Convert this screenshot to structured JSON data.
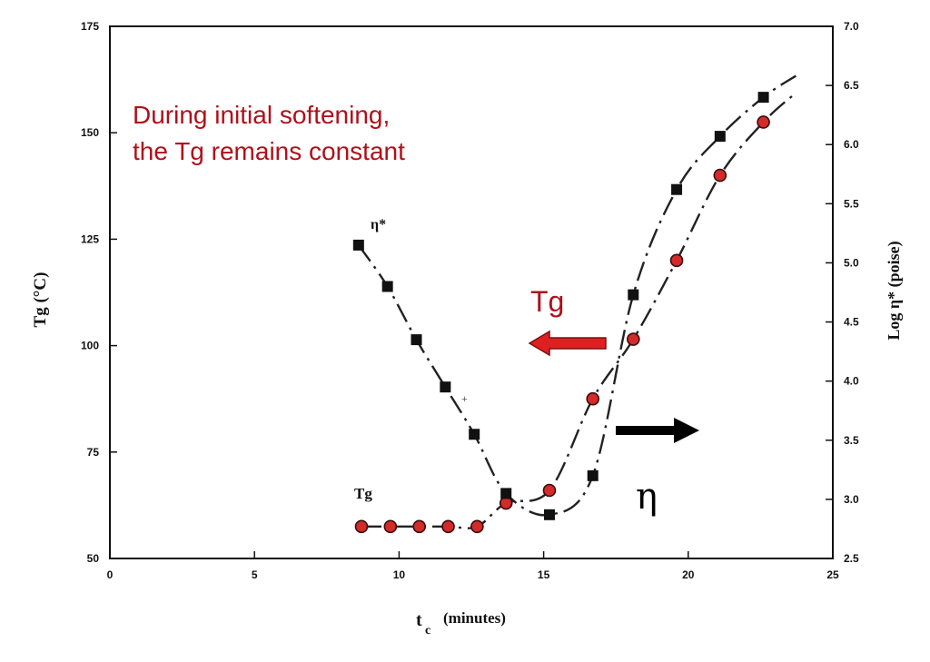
{
  "chart_data": {
    "type": "scatter",
    "title": "",
    "xlabel": "t",
    "xlabel_sub": "c",
    "xlabel_unit": "(minutes)",
    "ylabel_left": "Tg (°C)",
    "ylabel_right": "Log η* (poise)",
    "xlim": [
      0,
      25
    ],
    "ylim_left": [
      50,
      175
    ],
    "ylim_right": [
      2.5,
      7.0
    ],
    "x_ticks": [
      "0",
      "5",
      "10",
      "15",
      "20",
      "25"
    ],
    "y_left_ticks": [
      "50",
      "75",
      "100",
      "125",
      "150",
      "175"
    ],
    "y_right_ticks": [
      "2.5",
      "3.0",
      "3.5",
      "4.0",
      "4.5",
      "5.0",
      "5.5",
      "6.0",
      "6.5",
      "7.0"
    ],
    "grid": false,
    "series": [
      {
        "name": "Tg",
        "axis": "left",
        "marker": "circle",
        "color": "#d42a2a",
        "x": [
          8.7,
          9.7,
          10.7,
          11.7,
          12.7,
          13.7,
          15.2,
          16.7,
          18.1,
          19.6,
          21.1,
          22.6
        ],
        "y": [
          57.5,
          57.5,
          57.5,
          57.5,
          57.5,
          63,
          66,
          87.5,
          101.5,
          120,
          140,
          152.5
        ]
      },
      {
        "name": "η*",
        "axis": "right",
        "marker": "square",
        "color": "#111111",
        "x": [
          8.6,
          9.6,
          10.6,
          11.6,
          12.6,
          13.7,
          15.2,
          16.7,
          18.1,
          19.6,
          21.1,
          22.6
        ],
        "y": [
          5.15,
          4.8,
          4.35,
          3.95,
          3.55,
          3.05,
          2.87,
          3.2,
          4.73,
          5.62,
          6.07,
          6.4
        ]
      }
    ],
    "annotations": {
      "note_line1": "During initial softening,",
      "note_line2": "the Tg remains constant",
      "tg_arrow_label": "Tg",
      "eta_arrow_label": "η",
      "eta_star_label": "η*",
      "tg_series_label": "Tg"
    },
    "colors": {
      "accent_red": "#d42a2a",
      "note_red": "#b0101a",
      "ink": "#111111"
    }
  }
}
